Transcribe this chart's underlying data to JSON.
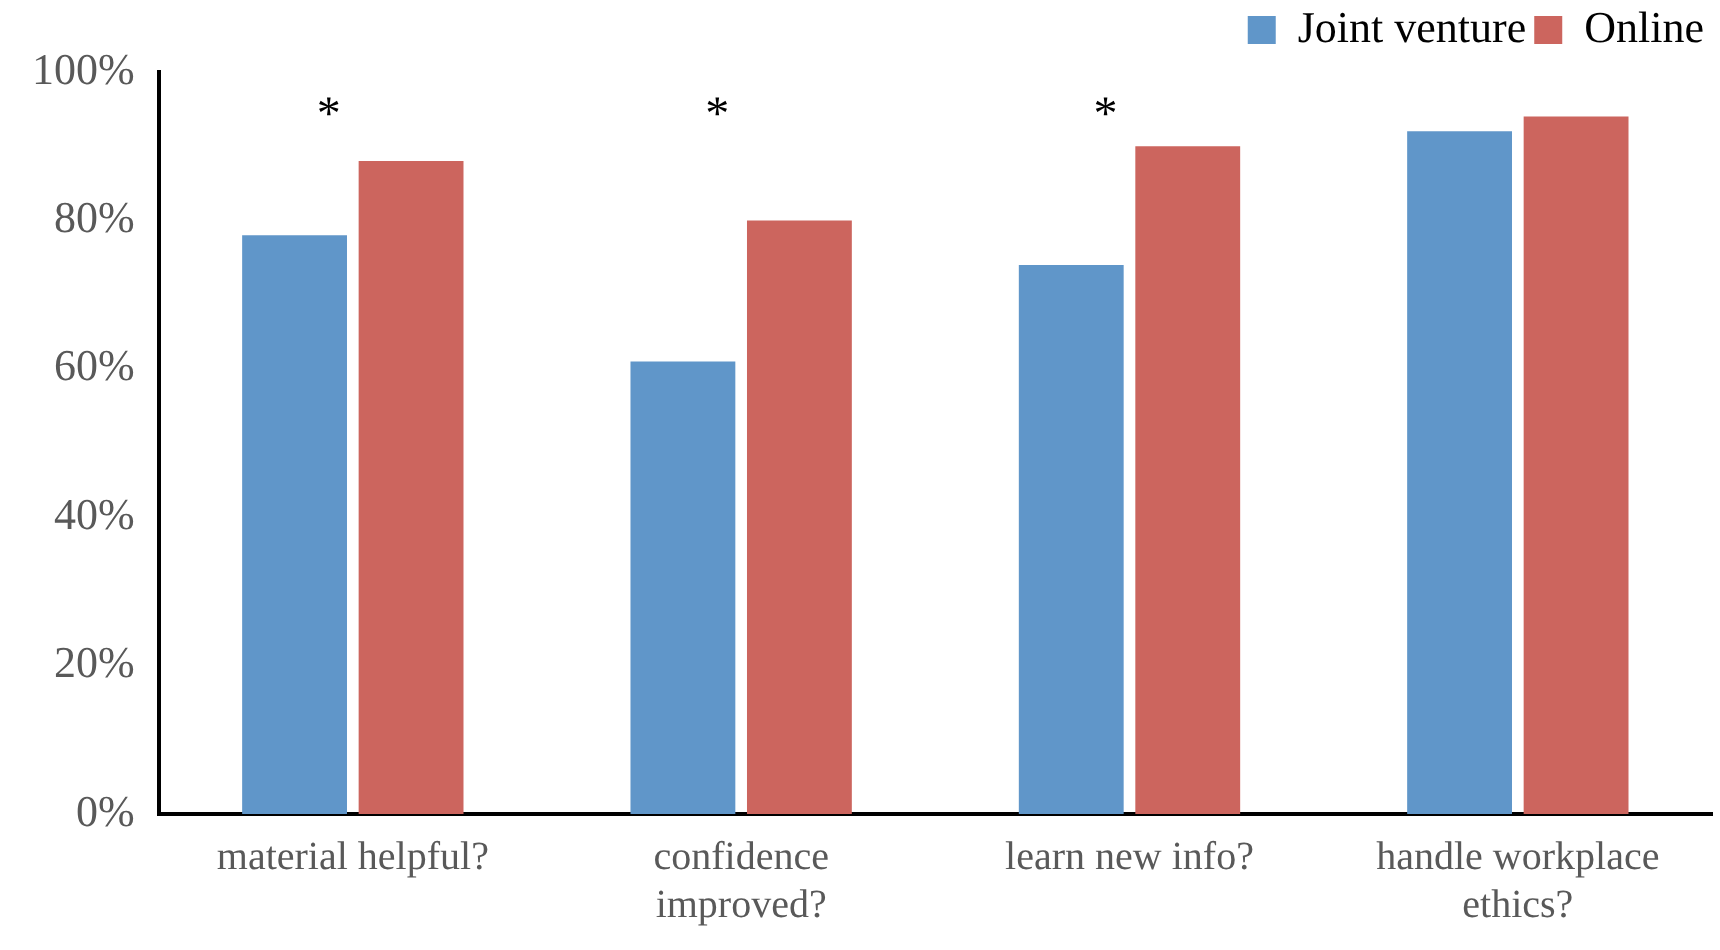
{
  "chart_data": {
    "type": "bar",
    "categories": [
      "material helpful?",
      "confidence improved?",
      "learn new info?",
      "handle workplace ethics?"
    ],
    "series": [
      {
        "name": "Joint venture",
        "color": "#6096c9",
        "values": [
          78,
          61,
          74,
          92
        ]
      },
      {
        "name": "Online",
        "color": "#cc655e",
        "values": [
          88,
          80,
          90,
          94
        ]
      }
    ],
    "ylim": [
      0,
      100
    ],
    "yticks": [
      {
        "value": 0,
        "label": "0%"
      },
      {
        "value": 20,
        "label": "20%"
      },
      {
        "value": 40,
        "label": "40%"
      },
      {
        "value": 60,
        "label": "60%"
      },
      {
        "value": 80,
        "label": "80%"
      },
      {
        "value": 100,
        "label": "100%"
      }
    ],
    "grid": false,
    "legend": "top right",
    "annotations": [
      "*",
      "*",
      "*"
    ]
  }
}
